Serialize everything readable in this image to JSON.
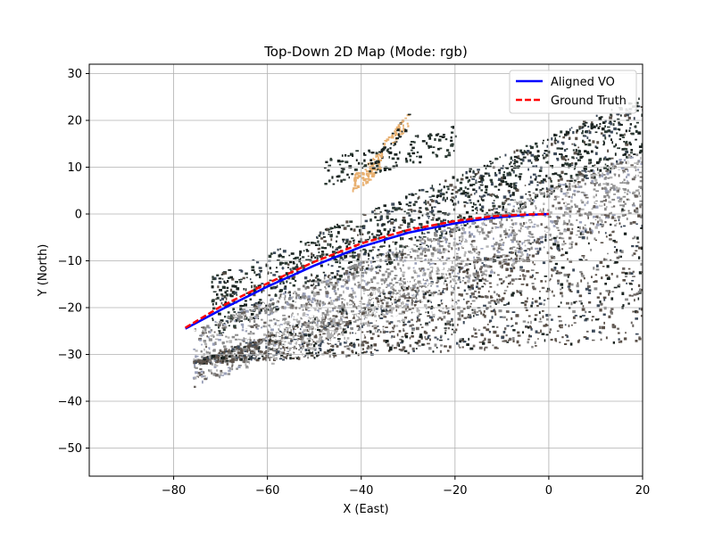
{
  "chart_data": {
    "type": "line",
    "title": "Top-Down 2D Map (Mode: rgb)",
    "xlabel": "X (East)",
    "ylabel": "Y (North)",
    "xlim": [
      -98,
      20
    ],
    "ylim": [
      -56,
      32
    ],
    "xticks": [
      -80,
      -60,
      -40,
      -20,
      0,
      20
    ],
    "yticks": [
      -50,
      -40,
      -30,
      -20,
      -10,
      0,
      10,
      20,
      30
    ],
    "grid": true,
    "legend_position": "top-right",
    "series": [
      {
        "name": "Aligned VO",
        "color": "#0000ff",
        "style": "solid",
        "x": [
          -77.5,
          -70,
          -60,
          -50,
          -40,
          -30,
          -20,
          -12,
          -5,
          0
        ],
        "y": [
          -24.5,
          -20.5,
          -15.5,
          -11,
          -7,
          -4,
          -2,
          -0.8,
          -0.2,
          0
        ]
      },
      {
        "name": "Ground Truth",
        "color": "#ff0000",
        "style": "dashed",
        "x": [
          -77.5,
          -70,
          -60,
          -50,
          -40,
          -30,
          -20,
          -12,
          -5,
          0
        ],
        "y": [
          -24.3,
          -19.8,
          -14.8,
          -10.2,
          -6.3,
          -3.4,
          -1.5,
          -0.5,
          -0.1,
          0
        ]
      }
    ],
    "background": {
      "type": "point-cloud",
      "colors": [
        "#1a2320",
        "#2b3a33",
        "#5a5048",
        "#8c8c8c",
        "#b5b5b5",
        "#ffffff",
        "#3d4a5a",
        "#e8b070",
        "#6a6460",
        "#9aa0b8"
      ]
    }
  }
}
